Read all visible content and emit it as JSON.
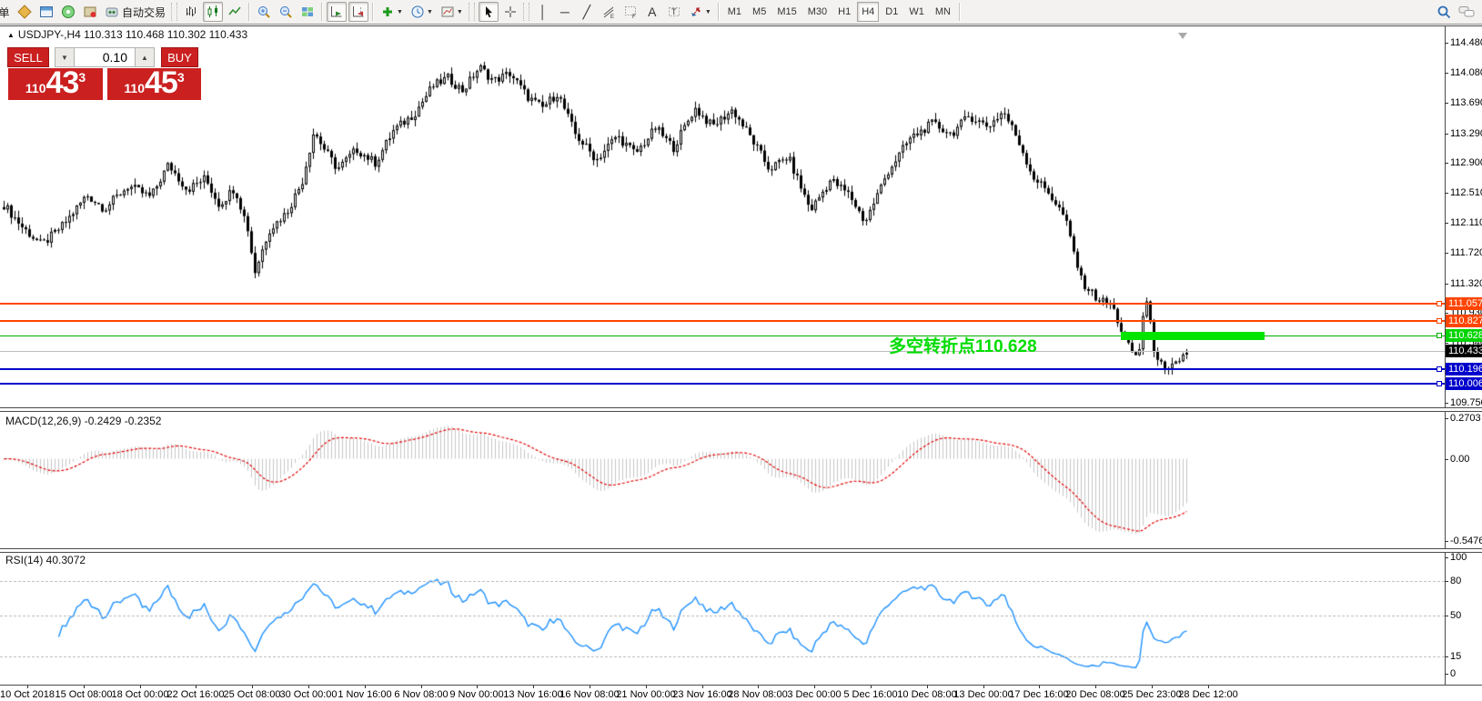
{
  "toolbar": {
    "new_order_label": "单",
    "autotrading_label": "自动交易",
    "timeframes": [
      "M1",
      "M5",
      "M15",
      "M30",
      "H1",
      "H4",
      "D1",
      "W1",
      "MN"
    ],
    "active_timeframe": "H4",
    "groups": [
      [
        {
          "name": "new-order-button",
          "text": "单"
        },
        {
          "name": "market-watch-button",
          "icon": "market-watch-icon"
        },
        {
          "name": "data-window-button",
          "icon": "data-window-icon"
        },
        {
          "name": "navigator-button",
          "icon": "navigator-icon"
        },
        {
          "name": "terminal-button",
          "icon": "terminal-icon"
        },
        {
          "name": "autotrading-button",
          "icon": "autotrading-icon",
          "text": "自动交易"
        }
      ],
      [
        {
          "name": "bar-chart-button",
          "icon": "bar-chart-icon"
        },
        {
          "name": "candlestick-button",
          "icon": "candlestick-icon",
          "pressed": true
        },
        {
          "name": "line-chart-button",
          "icon": "line-chart-icon"
        }
      ],
      [
        {
          "name": "zoom-in-button",
          "icon": "zoom-in-icon"
        },
        {
          "name": "zoom-out-button",
          "icon": "zoom-out-icon"
        },
        {
          "name": "tile-windows-button",
          "icon": "tile-windows-icon"
        }
      ],
      [
        {
          "name": "auto-scroll-button",
          "icon": "auto-scroll-icon",
          "pressed": true
        },
        {
          "name": "chart-shift-button",
          "icon": "chart-shift-icon",
          "pressed": true
        }
      ],
      [
        {
          "name": "indicators-button",
          "icon": "indicators-icon",
          "caret": true
        },
        {
          "name": "periods-button",
          "icon": "clock-icon",
          "caret": true
        },
        {
          "name": "templates-button",
          "icon": "template-icon",
          "caret": true
        }
      ],
      [
        {
          "name": "cursor-button",
          "icon": "cursor-icon",
          "pressed": true
        },
        {
          "name": "crosshair-button",
          "icon": "crosshair-icon"
        }
      ],
      [
        {
          "name": "vertical-line-button",
          "glyph": "│"
        },
        {
          "name": "horizontal-line-button",
          "glyph": "─"
        },
        {
          "name": "trendline-button",
          "glyph": "╱"
        },
        {
          "name": "equidistant-channel-button",
          "icon": "channel-icon"
        },
        {
          "name": "fibonacci-button",
          "icon": "fibo-icon"
        },
        {
          "name": "text-button",
          "glyph": "A"
        },
        {
          "name": "text-label-button",
          "icon": "text-label-icon"
        },
        {
          "name": "arrows-button",
          "icon": "arrows-icon",
          "caret": true
        }
      ]
    ],
    "right_icons": [
      {
        "name": "search-button",
        "icon": "search-icon"
      },
      {
        "name": "chat-button",
        "icon": "chat-icon"
      }
    ]
  },
  "symbol_bar": {
    "collapse_glyph": "▲",
    "full_title": "USDJPY-,H4  110.313 110.468 110.302 110.433"
  },
  "trade_panel": {
    "sell_label": "SELL",
    "buy_label": "BUY",
    "volume": "0.10",
    "stepper_down_glyph": "▼",
    "stepper_up_glyph": "▲",
    "sell_price": {
      "prefix": "110",
      "big": "43",
      "sup": "3"
    },
    "buy_price": {
      "prefix": "110",
      "big": "45",
      "sup": "3"
    }
  },
  "annotation": {
    "text": "多空转折点110.628",
    "color": "#00dc00"
  },
  "price_axis": [
    "114.480",
    "114.080",
    "113.690",
    "113.290",
    "112.900",
    "112.510",
    "112.110",
    "111.720",
    "111.320",
    "110.930",
    "110.540",
    "110.140",
    "109.750"
  ],
  "price_lines": [
    {
      "label": "111.057",
      "price": 111.057,
      "color": "#ff4500",
      "badge": "#ff4500",
      "thick": 2
    },
    {
      "label": "110.827",
      "price": 110.827,
      "color": "#ff4500",
      "badge": "#ff4500",
      "thick": 2
    },
    {
      "label": "110.628",
      "price": 110.628,
      "color": "#00ac00",
      "badge": "#00d400",
      "thick": 1
    },
    {
      "label": "110.433",
      "price": 110.433,
      "color": "#bdbdbd",
      "badge": "#000000",
      "thick": 1,
      "current": true
    },
    {
      "label": "110.196",
      "price": 110.196,
      "color": "#0000cc",
      "badge": "#0000cc",
      "thick": 2
    },
    {
      "label": "110.006",
      "price": 110.006,
      "color": "#0000cc",
      "badge": "#0000cc",
      "thick": 2
    }
  ],
  "green_zone": {
    "price": 110.628
  },
  "macd": {
    "label": "MACD(12,26,9) -0.2429 -0.2352",
    "scale": [
      {
        "text": "0.2703",
        "value": 0.2703
      },
      {
        "text": "0.00",
        "value": 0.0
      },
      {
        "text": "-0.5476",
        "value": -0.5476
      }
    ]
  },
  "rsi": {
    "label": "RSI(14) 40.3072",
    "scale": [
      {
        "text": "100",
        "value": 100
      },
      {
        "text": "80",
        "value": 80
      },
      {
        "text": "50",
        "value": 50
      },
      {
        "text": "15",
        "value": 15
      },
      {
        "text": "0",
        "value": 0
      }
    ],
    "levels": [
      80,
      50,
      15
    ]
  },
  "time_axis": [
    "10 Oct 2018",
    "15 Oct 08:00",
    "18 Oct 00:00",
    "22 Oct 16:00",
    "25 Oct 08:00",
    "30 Oct 00:00",
    "1 Nov 16:00",
    "6 Nov 08:00",
    "9 Nov 00:00",
    "13 Nov 16:00",
    "16 Nov 08:00",
    "21 Nov 00:00",
    "23 Nov 16:00",
    "28 Nov 08:00",
    "3 Dec 00:00",
    "5 Dec 16:00",
    "10 Dec 08:00",
    "13 Dec 00:00",
    "17 Dec 16:00",
    "20 Dec 08:00",
    "25 Dec 23:00",
    "28 Dec 12:00"
  ],
  "chart_data": {
    "type": "candlestick",
    "symbol": "USDJPY-",
    "timeframe": "H4",
    "ylim": [
      109.75,
      114.48
    ],
    "macd_range": [
      -0.5476,
      0.2703
    ],
    "rsi_range": [
      0,
      100
    ],
    "n_candles": 326,
    "wiggle": 0.06,
    "colors": {
      "candle_up": "#ffffff",
      "candle_down": "#000000",
      "candle_outline": "#000000",
      "macd_hist": "#c6c6c6",
      "macd_signal": "#e00000",
      "rsi_line": "#1e90ff"
    },
    "price_path": [
      [
        0.0,
        112.35
      ],
      [
        0.016,
        112.05
      ],
      [
        0.032,
        111.82
      ],
      [
        0.051,
        112.1
      ],
      [
        0.07,
        112.48
      ],
      [
        0.085,
        112.3
      ],
      [
        0.105,
        112.6
      ],
      [
        0.124,
        112.45
      ],
      [
        0.139,
        112.88
      ],
      [
        0.155,
        112.55
      ],
      [
        0.17,
        112.7
      ],
      [
        0.182,
        112.35
      ],
      [
        0.195,
        112.58
      ],
      [
        0.206,
        112.05
      ],
      [
        0.212,
        111.46
      ],
      [
        0.224,
        112.02
      ],
      [
        0.239,
        112.25
      ],
      [
        0.252,
        112.65
      ],
      [
        0.262,
        113.32
      ],
      [
        0.272,
        113.05
      ],
      [
        0.282,
        112.82
      ],
      [
        0.298,
        113.08
      ],
      [
        0.314,
        112.9
      ],
      [
        0.329,
        113.32
      ],
      [
        0.347,
        113.55
      ],
      [
        0.362,
        113.9
      ],
      [
        0.375,
        114.02
      ],
      [
        0.388,
        113.85
      ],
      [
        0.402,
        114.16
      ],
      [
        0.414,
        113.98
      ],
      [
        0.428,
        114.08
      ],
      [
        0.442,
        113.78
      ],
      [
        0.455,
        113.62
      ],
      [
        0.468,
        113.82
      ],
      [
        0.483,
        113.28
      ],
      [
        0.501,
        112.94
      ],
      [
        0.518,
        113.26
      ],
      [
        0.534,
        113.02
      ],
      [
        0.551,
        113.36
      ],
      [
        0.566,
        113.1
      ],
      [
        0.584,
        113.62
      ],
      [
        0.599,
        113.38
      ],
      [
        0.616,
        113.6
      ],
      [
        0.632,
        113.22
      ],
      [
        0.647,
        112.82
      ],
      [
        0.663,
        112.98
      ],
      [
        0.682,
        112.28
      ],
      [
        0.699,
        112.68
      ],
      [
        0.715,
        112.48
      ],
      [
        0.728,
        112.12
      ],
      [
        0.747,
        112.78
      ],
      [
        0.766,
        113.22
      ],
      [
        0.785,
        113.42
      ],
      [
        0.801,
        113.28
      ],
      [
        0.816,
        113.52
      ],
      [
        0.832,
        113.38
      ],
      [
        0.845,
        113.58
      ],
      [
        0.857,
        113.22
      ],
      [
        0.87,
        112.72
      ],
      [
        0.883,
        112.52
      ],
      [
        0.897,
        112.18
      ],
      [
        0.911,
        111.35
      ],
      [
        0.924,
        111.12
      ],
      [
        0.937,
        111.02
      ],
      [
        0.949,
        110.52
      ],
      [
        0.959,
        110.32
      ],
      [
        0.965,
        111.18
      ],
      [
        0.972,
        110.48
      ],
      [
        0.982,
        110.12
      ],
      [
        0.992,
        110.28
      ],
      [
        1.0,
        110.43
      ]
    ]
  }
}
